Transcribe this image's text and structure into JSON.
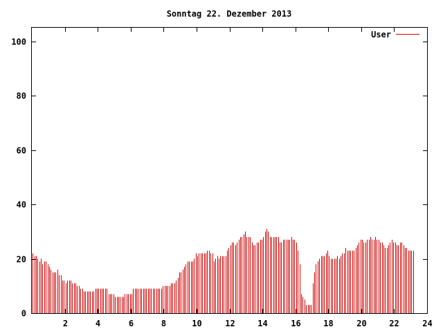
{
  "chart_data": {
    "type": "bar",
    "title": "Sonntag 22. Dezember 2013",
    "xlabel": "",
    "ylabel": "",
    "xlim": [
      0,
      24
    ],
    "ylim": [
      0,
      105
    ],
    "x_ticks": [
      2,
      4,
      6,
      8,
      10,
      12,
      14,
      16,
      18,
      20,
      22,
      24
    ],
    "y_ticks": [
      0,
      20,
      40,
      60,
      80,
      100
    ],
    "grid": false,
    "legend_position": "top-right",
    "series": [
      {
        "name": "User",
        "color": "#cc0000",
        "interval_hours": 0.1,
        "values": [
          22,
          21,
          21,
          20,
          19,
          20,
          18,
          19,
          19,
          18,
          17,
          16,
          15,
          15,
          15,
          16,
          14,
          14,
          12,
          12,
          11,
          12,
          12,
          12,
          11,
          11,
          11,
          10,
          10,
          9,
          9,
          8,
          8,
          8,
          8,
          8,
          8,
          8,
          9,
          9,
          9,
          9,
          9,
          9,
          9,
          9,
          7,
          7,
          7,
          7,
          6,
          6,
          6,
          6,
          6,
          6,
          7,
          7,
          7,
          7,
          7,
          9,
          9,
          9,
          9,
          9,
          9,
          9,
          9,
          9,
          9,
          9,
          9,
          9,
          9,
          9,
          9,
          9,
          9,
          10,
          10,
          10,
          10,
          10,
          11,
          11,
          11,
          12,
          13,
          15,
          15,
          16,
          17,
          18,
          19,
          19,
          19,
          19,
          20,
          22,
          21,
          22,
          22,
          22,
          22,
          22,
          23,
          23,
          22,
          22,
          19,
          20,
          21,
          20,
          21,
          21,
          21,
          21,
          23,
          24,
          25,
          26,
          26,
          25,
          26,
          27,
          28,
          28,
          29,
          30,
          28,
          28,
          28,
          26,
          25,
          25,
          26,
          26,
          27,
          27,
          28,
          30,
          31,
          30,
          28,
          28,
          28,
          28,
          28,
          28,
          26,
          26,
          27,
          27,
          27,
          27,
          27,
          28,
          27,
          27,
          26,
          23,
          18,
          7,
          6,
          5,
          3,
          3,
          3,
          3,
          11,
          15,
          18,
          19,
          20,
          21,
          21,
          21,
          22,
          23,
          21,
          20,
          20,
          20,
          20,
          21,
          20,
          21,
          22,
          22,
          24,
          23,
          23,
          23,
          23,
          23,
          24,
          25,
          26,
          27,
          27,
          26,
          26,
          27,
          27,
          28,
          27,
          27,
          28,
          27,
          27,
          26,
          26,
          25,
          24,
          24,
          25,
          26,
          27,
          26,
          26,
          25,
          25,
          26,
          26,
          25,
          24,
          24,
          23,
          23,
          23,
          23
        ]
      }
    ]
  }
}
